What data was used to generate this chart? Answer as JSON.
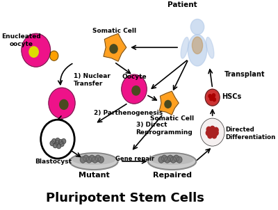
{
  "title": "Pluripotent Stem Cells",
  "title_fontsize": 13,
  "title_fontweight": "bold",
  "bg_color": "#ffffff",
  "labels": {
    "enucleated": "Enucleated\noocyte",
    "somatic_top": "Somatic Cell",
    "patient": "Patient",
    "nuclear_transfer": "1) Nuclear\nTransfer",
    "oocyte": "Oocyte",
    "somatic_right": "Somatic Cell",
    "parthenogenesis": "2) Parthenogenesis",
    "blastocyst": "Blastocyst",
    "direct_reprog": "3) Direct\nReprogramming",
    "gene_repair": "Gene repair",
    "mutant": "Mutant",
    "repaired": "Repaired",
    "transplant": "Transplant",
    "hscs": "HSCs",
    "directed_diff": "Directed\nDifferentiation"
  },
  "colors": {
    "magenta": "#EE1289",
    "orange": "#FFA020",
    "dark_red": "#8B0000",
    "dark_red2": "#CC2222",
    "gray": "#909090",
    "dark_gray": "#505050",
    "light_blue": "#B0C8E8",
    "olive": "#4A4A20",
    "white": "#FFFFFF",
    "black": "#000000",
    "petri_gray": "#AAAAAA",
    "petri_rim": "#777777"
  }
}
